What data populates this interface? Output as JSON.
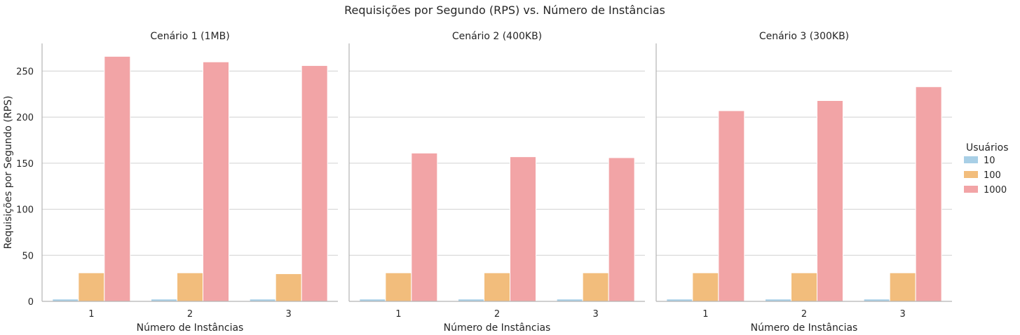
{
  "chart_data": {
    "type": "bar",
    "title": "Requisições por Segundo (RPS) vs. Número de Instâncias",
    "ylabel": "Requisições por Segundo (RPS)",
    "xlabel": "Número de Instâncias",
    "ylim": [
      0,
      280
    ],
    "yticks": [
      "0",
      "50",
      "100",
      "150",
      "200",
      "250"
    ],
    "grid": true,
    "legend": {
      "title": "Usuários",
      "position": "right",
      "entries": [
        "10",
        "100",
        "1000"
      ]
    },
    "colors": [
      "#a8cfe6",
      "#f2bd7c",
      "#f2a4a6"
    ],
    "panels": [
      {
        "title": "Cenário 1 (1MB)",
        "categories": [
          "1",
          "2",
          "3"
        ],
        "series": [
          {
            "name": "10",
            "values": [
              2.5,
              2.5,
              2.5
            ]
          },
          {
            "name": "100",
            "values": [
              31,
              31,
              30
            ]
          },
          {
            "name": "1000",
            "values": [
              266,
              260,
              256
            ]
          }
        ]
      },
      {
        "title": "Cenário 2 (400KB)",
        "categories": [
          "1",
          "2",
          "3"
        ],
        "series": [
          {
            "name": "10",
            "values": [
              2.5,
              2.5,
              2.5
            ]
          },
          {
            "name": "100",
            "values": [
              31,
              31,
              31
            ]
          },
          {
            "name": "1000",
            "values": [
              161,
              157,
              156
            ]
          }
        ]
      },
      {
        "title": "Cenário 3 (300KB)",
        "categories": [
          "1",
          "2",
          "3"
        ],
        "series": [
          {
            "name": "10",
            "values": [
              2.5,
              2.5,
              2.5
            ]
          },
          {
            "name": "100",
            "values": [
              31,
              31,
              31
            ]
          },
          {
            "name": "1000",
            "values": [
              207,
              218,
              233
            ]
          }
        ]
      }
    ]
  }
}
